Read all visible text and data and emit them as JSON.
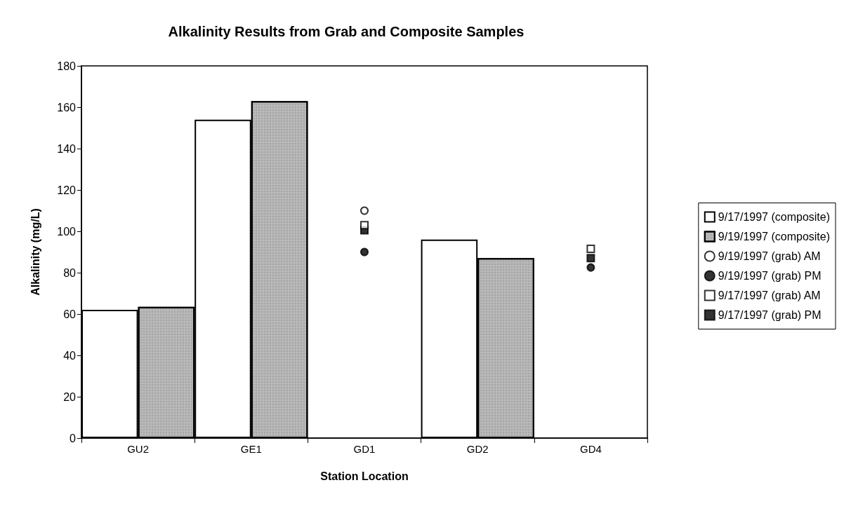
{
  "chart_data": {
    "type": "bar",
    "title": "Alkalinity Results from Grab and Composite Samples",
    "xlabel": "Station Location",
    "ylabel": "Alkalinity (mg/L)",
    "categories": [
      "GU2",
      "GE1",
      "GD1",
      "GD2",
      "GD4"
    ],
    "series": [
      {
        "name": "9/17/1997 (composite)",
        "color": "#ffffff",
        "values": [
          62,
          154,
          null,
          96,
          null
        ]
      },
      {
        "name": "9/19/1997 (composite)",
        "color": "#b8b8b8",
        "values": [
          63.5,
          163,
          null,
          87,
          null
        ]
      },
      {
        "name": "9/19/1997 (grab) AM",
        "type": "scatter",
        "marker": "circle",
        "color": "#ffffff",
        "x": [
          "GD1"
        ],
        "values": [
          110
        ]
      },
      {
        "name": "9/19/1997 (grab) PM",
        "type": "scatter",
        "marker": "circle",
        "color": "#000000",
        "x": [
          "GD1",
          "GD4"
        ],
        "values": [
          90,
          82.5
        ]
      },
      {
        "name": "9/17/1997 (grab) AM",
        "type": "scatter",
        "marker": "square",
        "color": "#ffffff",
        "x": [
          "GD1",
          "GD4"
        ],
        "values": [
          103,
          91.5
        ]
      },
      {
        "name": "9/17/1997 (grab) PM",
        "type": "scatter",
        "marker": "square",
        "color": "#000000",
        "x": [
          "GD1",
          "GD4"
        ],
        "values": [
          100.5,
          87
        ]
      }
    ],
    "ylim": [
      0,
      180
    ],
    "yticks": [
      0,
      20,
      40,
      60,
      80,
      100,
      120,
      140,
      160,
      180
    ],
    "grid": false,
    "legend": "right"
  }
}
